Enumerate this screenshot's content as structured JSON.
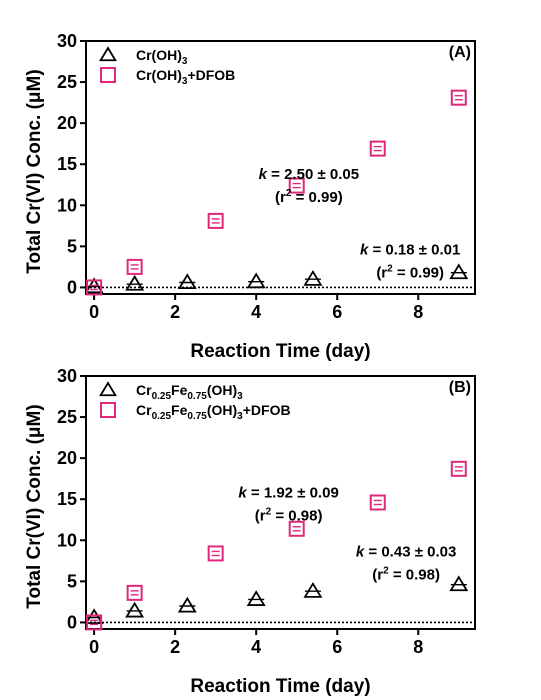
{
  "chart_data": [
    {
      "type": "scatter",
      "panel_label": "(A)",
      "xlabel": "Reaction Time (day)",
      "ylabel": "Total Cr(VI) Conc. (μM)",
      "xlim": [
        -0.2,
        9.4
      ],
      "ylim": [
        -0.8,
        30
      ],
      "xticks": [
        0,
        2,
        4,
        6,
        8
      ],
      "yticks": [
        0,
        5,
        10,
        15,
        20,
        25,
        30
      ],
      "zero_line": true,
      "legend_position": "top-left",
      "series": [
        {
          "name": "Cr(OH)3",
          "name_main": "Cr(OH)",
          "name_parts": [
            {
              "t": "Cr(OH)",
              "sub": false
            },
            {
              "t": "3",
              "sub": true
            }
          ],
          "marker": "triangle",
          "color": "#000000",
          "x": [
            0,
            1,
            2.3,
            4,
            5.4,
            9
          ],
          "y": [
            0.1,
            0.4,
            0.6,
            0.7,
            1.0,
            1.8
          ]
        },
        {
          "name": "Cr(OH)3+DFOB",
          "name_parts": [
            {
              "t": "Cr(OH)",
              "sub": false
            },
            {
              "t": "3",
              "sub": true
            },
            {
              "t": "+DFOB",
              "sub": false
            }
          ],
          "marker": "square",
          "color": "#e0287a",
          "x": [
            0,
            1,
            3,
            5,
            7,
            9
          ],
          "y": [
            0.0,
            2.5,
            8.1,
            12.4,
            16.9,
            23.1
          ]
        }
      ],
      "annotations": [
        {
          "k_label": "k",
          "k_text": " = 2.50 ± 0.05",
          "r2_open": "(r",
          "r2_sup": "2",
          "r2_close": " = 0.99)",
          "at": [
            5.3,
            13.2
          ]
        },
        {
          "k_label": "k",
          "k_text": " = 0.18 ± 0.01",
          "r2_open": "(r",
          "r2_sup": "2",
          "r2_close": " = 0.99)",
          "at": [
            7.8,
            4.0
          ]
        }
      ]
    },
    {
      "type": "scatter",
      "panel_label": "(B)",
      "xlabel": "Reaction Time (day)",
      "ylabel": "Total Cr(VI) Conc. (μM)",
      "xlim": [
        -0.2,
        9.4
      ],
      "ylim": [
        -0.8,
        30
      ],
      "xticks": [
        0,
        2,
        4,
        6,
        8
      ],
      "yticks": [
        0,
        5,
        10,
        15,
        20,
        25,
        30
      ],
      "zero_line": true,
      "legend_position": "top-left",
      "series": [
        {
          "name": "Cr0.25Fe0.75(OH)3",
          "name_parts": [
            {
              "t": "Cr",
              "sub": false
            },
            {
              "t": "0.25",
              "sub": true
            },
            {
              "t": "Fe",
              "sub": false
            },
            {
              "t": "0.75",
              "sub": true
            },
            {
              "t": "(OH)",
              "sub": false
            },
            {
              "t": "3",
              "sub": true
            }
          ],
          "marker": "triangle",
          "color": "#000000",
          "x": [
            0,
            1,
            2.3,
            4,
            5.4,
            9
          ],
          "y": [
            0.6,
            1.4,
            2.0,
            2.8,
            3.8,
            4.6
          ]
        },
        {
          "name": "Cr0.25Fe0.75(OH)3+DFOB",
          "name_parts": [
            {
              "t": "Cr",
              "sub": false
            },
            {
              "t": "0.25",
              "sub": true
            },
            {
              "t": "Fe",
              "sub": false
            },
            {
              "t": "0.75",
              "sub": true
            },
            {
              "t": "(OH)",
              "sub": false
            },
            {
              "t": "3",
              "sub": true
            },
            {
              "t": "+DFOB",
              "sub": false
            }
          ],
          "marker": "square",
          "color": "#e0287a",
          "x": [
            0,
            1,
            3,
            5,
            7,
            9
          ],
          "y": [
            0.0,
            3.6,
            8.4,
            11.4,
            14.6,
            18.7
          ]
        }
      ],
      "annotations": [
        {
          "k_label": "k",
          "k_text": " = 1.92 ± 0.09",
          "r2_open": "(r",
          "r2_sup": "2",
          "r2_close": " = 0.98)",
          "at": [
            4.8,
            15.2
          ]
        },
        {
          "k_label": "k",
          "k_text": " = 0.43 ± 0.03",
          "r2_open": "(r",
          "r2_sup": "2",
          "r2_close": " = 0.98)",
          "at": [
            7.7,
            8.0
          ]
        }
      ]
    }
  ]
}
